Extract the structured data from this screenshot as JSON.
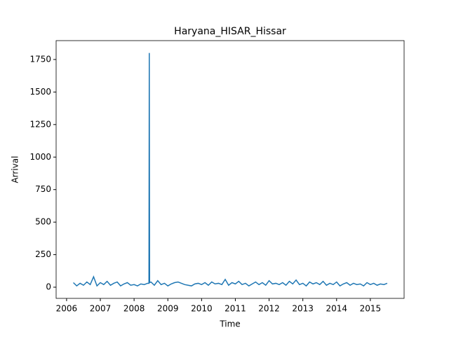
{
  "chart_data": {
    "type": "line",
    "title": "Haryana_HISAR_Hissar",
    "x_label": "Time",
    "y_label": "Arrival",
    "x": [
      2006.2,
      2006.3,
      2006.4,
      2006.5,
      2006.6,
      2006.7,
      2006.8,
      2006.9,
      2007.0,
      2007.1,
      2007.2,
      2007.3,
      2007.4,
      2007.5,
      2007.6,
      2007.7,
      2007.8,
      2007.9,
      2008.0,
      2008.1,
      2008.2,
      2008.3,
      2008.4,
      2008.44,
      2008.45,
      2008.46,
      2008.5,
      2008.6,
      2008.7,
      2008.8,
      2008.9,
      2009.0,
      2009.1,
      2009.2,
      2009.3,
      2009.4,
      2009.5,
      2009.6,
      2009.7,
      2009.8,
      2009.9,
      2010.0,
      2010.1,
      2010.2,
      2010.3,
      2010.4,
      2010.5,
      2010.6,
      2010.7,
      2010.8,
      2010.9,
      2011.0,
      2011.1,
      2011.2,
      2011.3,
      2011.4,
      2011.5,
      2011.6,
      2011.7,
      2011.8,
      2011.9,
      2012.0,
      2012.1,
      2012.2,
      2012.3,
      2012.4,
      2012.5,
      2012.6,
      2012.7,
      2012.8,
      2012.9,
      2013.0,
      2013.1,
      2013.2,
      2013.3,
      2013.4,
      2013.5,
      2013.6,
      2013.7,
      2013.8,
      2013.9,
      2014.0,
      2014.1,
      2014.2,
      2014.3,
      2014.4,
      2014.5,
      2014.6,
      2014.7,
      2014.8,
      2014.9,
      2015.0,
      2015.1,
      2015.2,
      2015.3,
      2015.4,
      2015.5
    ],
    "series": [
      {
        "name": "Arrival",
        "color": "#1f77b4",
        "values": [
          35,
          10,
          30,
          15,
          40,
          20,
          80,
          10,
          35,
          20,
          45,
          15,
          30,
          40,
          10,
          25,
          35,
          15,
          20,
          10,
          25,
          20,
          30,
          30,
          1800,
          35,
          40,
          15,
          50,
          20,
          30,
          10,
          25,
          35,
          40,
          30,
          20,
          15,
          10,
          25,
          30,
          20,
          35,
          15,
          40,
          25,
          30,
          20,
          60,
          15,
          35,
          25,
          45,
          20,
          30,
          10,
          25,
          40,
          20,
          35,
          15,
          50,
          25,
          30,
          20,
          35,
          15,
          45,
          25,
          55,
          20,
          30,
          10,
          40,
          25,
          35,
          20,
          45,
          15,
          30,
          20,
          40,
          10,
          25,
          35,
          15,
          30,
          20,
          25,
          10,
          35,
          20,
          30,
          15,
          25,
          20,
          30
        ]
      }
    ],
    "xlim": [
      2005.69,
      2016.0
    ],
    "xticks": [
      2006,
      2007,
      2008,
      2009,
      2010,
      2011,
      2012,
      2013,
      2014,
      2015
    ],
    "ylim": [
      -86,
      1895
    ],
    "yticks": [
      0,
      250,
      500,
      750,
      1000,
      1250,
      1500,
      1750
    ]
  }
}
